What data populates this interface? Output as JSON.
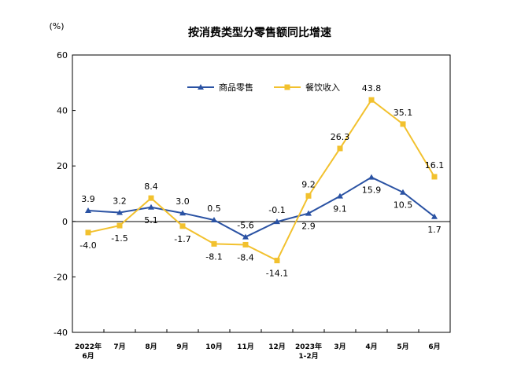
{
  "chart_data": {
    "type": "line",
    "title": "按消费类型分零售额同比增速",
    "unit_label": "(%)",
    "categories": [
      [
        "2022年",
        "6月"
      ],
      [
        "7月"
      ],
      [
        "8月"
      ],
      [
        "9月"
      ],
      [
        "10月"
      ],
      [
        "11月"
      ],
      [
        "12月"
      ],
      [
        "2023年",
        "1-2月"
      ],
      [
        "3月"
      ],
      [
        "4月"
      ],
      [
        "5月"
      ],
      [
        "6月"
      ]
    ],
    "ylim": [
      -40,
      60
    ],
    "yticks": [
      -40,
      -20,
      0,
      20,
      40,
      60
    ],
    "grid": false,
    "legend_position": "top-center",
    "series": [
      {
        "name": "商品零售",
        "color": "#2a52a3",
        "marker": "triangle",
        "values": [
          3.9,
          3.2,
          5.1,
          3.0,
          0.5,
          -5.6,
          -0.1,
          2.9,
          9.1,
          15.9,
          10.5,
          1.7
        ],
        "labels": [
          "3.9",
          "3.2",
          "5.1",
          "3.0",
          "0.5",
          "-5.6",
          "-0.1",
          "2.9",
          "9.1",
          "15.9",
          "10.5",
          "1.7"
        ]
      },
      {
        "name": "餐饮收入",
        "color": "#f2c12e",
        "marker": "square",
        "values": [
          -4.0,
          -1.5,
          8.4,
          -1.7,
          -8.1,
          -8.4,
          -14.1,
          9.2,
          26.3,
          43.8,
          35.1,
          16.1
        ],
        "labels": [
          "-4.0",
          "-1.5",
          "8.4",
          "-1.7",
          "-8.1",
          "-8.4",
          "-14.1",
          "9.2",
          "26.3",
          "43.8",
          "35.1",
          "16.1"
        ]
      }
    ]
  }
}
